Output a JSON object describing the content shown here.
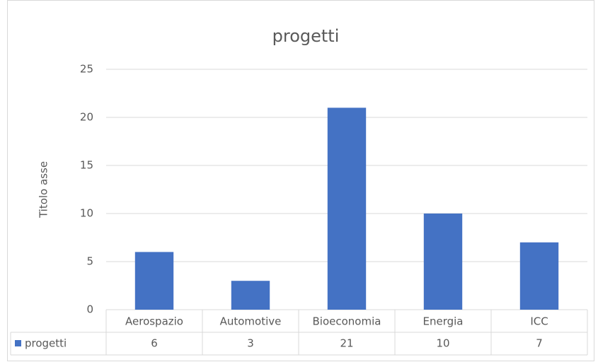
{
  "chart_data": {
    "type": "bar",
    "title": "progetti",
    "y_label": "Titolo asse",
    "categories": [
      "Aerospazio",
      "Automotive",
      "Bioeconomia",
      "Energia",
      "ICC"
    ],
    "series": [
      {
        "name": "progetti",
        "color": "#4472c4",
        "values": [
          6,
          3,
          21,
          10,
          7
        ]
      }
    ],
    "ylim": [
      0,
      25
    ],
    "yticks": [
      0,
      5,
      10,
      15,
      20,
      25
    ],
    "grid": true,
    "data_table": true
  }
}
